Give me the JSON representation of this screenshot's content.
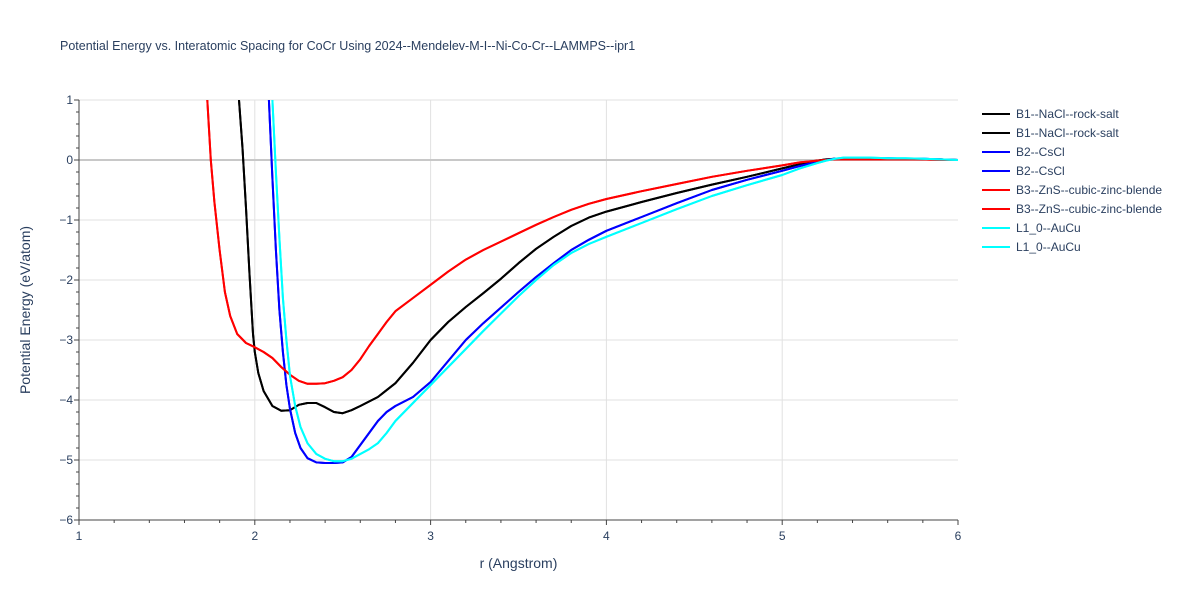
{
  "chart_data": {
    "type": "line",
    "title": "Potential Energy vs. Interatomic Spacing for CoCr Using 2024--Mendelev-M-I--Ni-Co-Cr--LAMMPS--ipr1",
    "xlabel": "r (Angstrom)",
    "ylabel": "Potential Energy (eV/atom)",
    "xlim": [
      1,
      6
    ],
    "ylim": [
      -6,
      1
    ],
    "x_ticks": [
      "1",
      "2",
      "3",
      "4",
      "5",
      "6"
    ],
    "y_ticks": [
      "−6",
      "−5",
      "−4",
      "−3",
      "−2",
      "−1",
      "0",
      "1"
    ],
    "grid": true,
    "legend_position": "right",
    "series": [
      {
        "name": "B1--NaCl--rock-salt",
        "color": "#000000",
        "x": [
          1.91,
          1.93,
          1.95,
          1.97,
          1.99,
          2.0,
          2.02,
          2.05,
          2.1,
          2.15,
          2.2,
          2.25,
          2.3,
          2.35,
          2.4,
          2.45,
          2.5,
          2.55,
          2.6,
          2.7,
          2.8,
          2.9,
          3.0,
          3.1,
          3.2,
          3.3,
          3.4,
          3.5,
          3.6,
          3.7,
          3.8,
          3.9,
          4.0,
          4.2,
          4.4,
          4.6,
          4.8,
          5.0,
          5.1,
          5.2,
          5.25,
          5.3,
          5.4,
          5.5,
          5.6,
          5.7,
          5.8,
          5.9,
          6.0
        ],
        "y": [
          1.0,
          0.2,
          -0.8,
          -1.9,
          -2.9,
          -3.2,
          -3.55,
          -3.85,
          -4.1,
          -4.18,
          -4.17,
          -4.08,
          -4.05,
          -4.05,
          -4.12,
          -4.2,
          -4.22,
          -4.17,
          -4.1,
          -3.95,
          -3.72,
          -3.38,
          -3.0,
          -2.7,
          -2.45,
          -2.22,
          -1.98,
          -1.72,
          -1.48,
          -1.28,
          -1.1,
          -0.96,
          -0.86,
          -0.7,
          -0.55,
          -0.41,
          -0.28,
          -0.14,
          -0.07,
          -0.01,
          0.01,
          0.02,
          0.02,
          0.02,
          0.02,
          0.02,
          0.01,
          0.01,
          0.0
        ]
      },
      {
        "name": "B1--NaCl--rock-salt",
        "color": "#000000",
        "x": [
          1.91,
          1.93,
          1.95,
          1.97,
          1.99,
          2.0,
          2.02,
          2.05,
          2.1,
          2.15,
          2.2,
          2.25,
          2.3,
          2.35,
          2.4,
          2.45,
          2.5,
          2.55,
          2.6,
          2.7,
          2.8,
          2.9,
          3.0,
          3.1,
          3.2,
          3.3,
          3.4,
          3.5,
          3.6,
          3.7,
          3.8,
          3.9,
          4.0,
          4.2,
          4.4,
          4.6,
          4.8,
          5.0,
          5.1,
          5.2,
          5.25,
          5.3,
          5.4,
          5.5,
          5.6,
          5.7,
          5.8,
          5.9,
          6.0
        ],
        "y": [
          1.0,
          0.2,
          -0.8,
          -1.9,
          -2.9,
          -3.2,
          -3.55,
          -3.85,
          -4.1,
          -4.18,
          -4.17,
          -4.08,
          -4.05,
          -4.05,
          -4.12,
          -4.2,
          -4.22,
          -4.17,
          -4.1,
          -3.95,
          -3.72,
          -3.38,
          -3.0,
          -2.7,
          -2.45,
          -2.22,
          -1.98,
          -1.72,
          -1.48,
          -1.28,
          -1.1,
          -0.96,
          -0.86,
          -0.7,
          -0.55,
          -0.41,
          -0.28,
          -0.14,
          -0.07,
          -0.01,
          0.01,
          0.02,
          0.02,
          0.02,
          0.02,
          0.02,
          0.01,
          0.01,
          0.0
        ]
      },
      {
        "name": "B2--CsCl",
        "color": "#0000ff",
        "x": [
          2.08,
          2.1,
          2.12,
          2.14,
          2.16,
          2.18,
          2.2,
          2.23,
          2.26,
          2.3,
          2.35,
          2.4,
          2.45,
          2.5,
          2.55,
          2.6,
          2.65,
          2.7,
          2.75,
          2.8,
          2.9,
          3.0,
          3.1,
          3.2,
          3.3,
          3.4,
          3.5,
          3.6,
          3.7,
          3.8,
          3.9,
          4.0,
          4.2,
          4.4,
          4.6,
          4.8,
          5.0,
          5.1,
          5.2,
          5.25,
          5.3,
          5.35,
          5.4,
          5.5,
          5.6,
          5.7,
          5.8,
          5.9,
          6.0
        ],
        "y": [
          1.0,
          -0.3,
          -1.5,
          -2.5,
          -3.2,
          -3.75,
          -4.15,
          -4.55,
          -4.8,
          -4.97,
          -5.04,
          -5.05,
          -5.05,
          -5.04,
          -4.95,
          -4.75,
          -4.55,
          -4.35,
          -4.2,
          -4.1,
          -3.95,
          -3.7,
          -3.35,
          -3.0,
          -2.72,
          -2.46,
          -2.2,
          -1.95,
          -1.72,
          -1.5,
          -1.33,
          -1.18,
          -0.95,
          -0.72,
          -0.5,
          -0.33,
          -0.18,
          -0.1,
          -0.03,
          0.0,
          0.02,
          0.03,
          0.03,
          0.03,
          0.03,
          0.02,
          0.02,
          0.01,
          0.0
        ]
      },
      {
        "name": "B2--CsCl",
        "color": "#0000ff",
        "x": [
          2.08,
          2.1,
          2.12,
          2.14,
          2.16,
          2.18,
          2.2,
          2.23,
          2.26,
          2.3,
          2.35,
          2.4,
          2.45,
          2.5,
          2.55,
          2.6,
          2.65,
          2.7,
          2.75,
          2.8,
          2.9,
          3.0,
          3.1,
          3.2,
          3.3,
          3.4,
          3.5,
          3.6,
          3.7,
          3.8,
          3.9,
          4.0,
          4.2,
          4.4,
          4.6,
          4.8,
          5.0,
          5.1,
          5.2,
          5.25,
          5.3,
          5.35,
          5.4,
          5.5,
          5.6,
          5.7,
          5.8,
          5.9,
          6.0
        ],
        "y": [
          1.0,
          -0.3,
          -1.5,
          -2.5,
          -3.2,
          -3.75,
          -4.15,
          -4.55,
          -4.8,
          -4.97,
          -5.04,
          -5.05,
          -5.05,
          -5.04,
          -4.95,
          -4.75,
          -4.55,
          -4.35,
          -4.2,
          -4.1,
          -3.95,
          -3.7,
          -3.35,
          -3.0,
          -2.72,
          -2.46,
          -2.2,
          -1.95,
          -1.72,
          -1.5,
          -1.33,
          -1.18,
          -0.95,
          -0.72,
          -0.5,
          -0.33,
          -0.18,
          -0.1,
          -0.03,
          0.0,
          0.02,
          0.03,
          0.03,
          0.03,
          0.03,
          0.02,
          0.02,
          0.01,
          0.0
        ]
      },
      {
        "name": "B3--ZnS--cubic-zinc-blende",
        "color": "#ff0000",
        "x": [
          1.73,
          1.75,
          1.77,
          1.8,
          1.83,
          1.86,
          1.9,
          1.95,
          2.0,
          2.05,
          2.1,
          2.15,
          2.2,
          2.25,
          2.3,
          2.35,
          2.4,
          2.45,
          2.5,
          2.55,
          2.6,
          2.65,
          2.7,
          2.75,
          2.8,
          2.9,
          3.0,
          3.1,
          3.2,
          3.3,
          3.4,
          3.5,
          3.6,
          3.7,
          3.8,
          3.9,
          4.0,
          4.2,
          4.4,
          4.6,
          4.8,
          5.0,
          5.1,
          5.2,
          5.25,
          5.3,
          5.4,
          5.5,
          5.6,
          5.7,
          5.8,
          5.9,
          6.0
        ],
        "y": [
          1.0,
          0.0,
          -0.7,
          -1.5,
          -2.2,
          -2.6,
          -2.9,
          -3.05,
          -3.12,
          -3.2,
          -3.3,
          -3.45,
          -3.58,
          -3.68,
          -3.73,
          -3.73,
          -3.72,
          -3.68,
          -3.62,
          -3.5,
          -3.32,
          -3.1,
          -2.9,
          -2.7,
          -2.52,
          -2.3,
          -2.08,
          -1.86,
          -1.66,
          -1.5,
          -1.36,
          -1.22,
          -1.08,
          -0.95,
          -0.83,
          -0.73,
          -0.65,
          -0.52,
          -0.4,
          -0.28,
          -0.18,
          -0.09,
          -0.04,
          -0.01,
          0.0,
          0.01,
          0.01,
          0.01,
          0.01,
          0.01,
          0.01,
          0.0,
          0.0
        ]
      },
      {
        "name": "B3--ZnS--cubic-zinc-blende",
        "color": "#ff0000",
        "x": [
          1.73,
          1.75,
          1.77,
          1.8,
          1.83,
          1.86,
          1.9,
          1.95,
          2.0,
          2.05,
          2.1,
          2.15,
          2.2,
          2.25,
          2.3,
          2.35,
          2.4,
          2.45,
          2.5,
          2.55,
          2.6,
          2.65,
          2.7,
          2.75,
          2.8,
          2.9,
          3.0,
          3.1,
          3.2,
          3.3,
          3.4,
          3.5,
          3.6,
          3.7,
          3.8,
          3.9,
          4.0,
          4.2,
          4.4,
          4.6,
          4.8,
          5.0,
          5.1,
          5.2,
          5.25,
          5.3,
          5.4,
          5.5,
          5.6,
          5.7,
          5.8,
          5.9,
          6.0
        ],
        "y": [
          1.0,
          0.0,
          -0.7,
          -1.5,
          -2.2,
          -2.6,
          -2.9,
          -3.05,
          -3.12,
          -3.2,
          -3.3,
          -3.45,
          -3.58,
          -3.68,
          -3.73,
          -3.73,
          -3.72,
          -3.68,
          -3.62,
          -3.5,
          -3.32,
          -3.1,
          -2.9,
          -2.7,
          -2.52,
          -2.3,
          -2.08,
          -1.86,
          -1.66,
          -1.5,
          -1.36,
          -1.22,
          -1.08,
          -0.95,
          -0.83,
          -0.73,
          -0.65,
          -0.52,
          -0.4,
          -0.28,
          -0.18,
          -0.09,
          -0.04,
          -0.01,
          0.0,
          0.01,
          0.01,
          0.01,
          0.01,
          0.01,
          0.01,
          0.0,
          0.0
        ]
      },
      {
        "name": "L1_0--AuCu",
        "color": "#00ffff",
        "x": [
          2.1,
          2.12,
          2.14,
          2.16,
          2.18,
          2.2,
          2.23,
          2.26,
          2.3,
          2.35,
          2.4,
          2.45,
          2.5,
          2.55,
          2.6,
          2.65,
          2.7,
          2.75,
          2.8,
          2.9,
          3.0,
          3.1,
          3.2,
          3.3,
          3.4,
          3.5,
          3.6,
          3.7,
          3.8,
          3.9,
          4.0,
          4.2,
          4.4,
          4.6,
          4.8,
          5.0,
          5.1,
          5.2,
          5.25,
          5.3,
          5.35,
          5.4,
          5.5,
          5.6,
          5.7,
          5.8,
          5.9,
          6.0
        ],
        "y": [
          1.0,
          -0.2,
          -1.3,
          -2.3,
          -3.0,
          -3.6,
          -4.1,
          -4.45,
          -4.72,
          -4.9,
          -4.98,
          -5.02,
          -5.02,
          -4.98,
          -4.9,
          -4.82,
          -4.72,
          -4.55,
          -4.35,
          -4.05,
          -3.75,
          -3.45,
          -3.15,
          -2.85,
          -2.56,
          -2.27,
          -2.0,
          -1.75,
          -1.55,
          -1.4,
          -1.28,
          -1.05,
          -0.82,
          -0.6,
          -0.42,
          -0.25,
          -0.14,
          -0.05,
          -0.01,
          0.02,
          0.04,
          0.04,
          0.04,
          0.03,
          0.03,
          0.02,
          0.01,
          0.0
        ]
      },
      {
        "name": "L1_0--AuCu",
        "color": "#00ffff",
        "x": [
          2.1,
          2.12,
          2.14,
          2.16,
          2.18,
          2.2,
          2.23,
          2.26,
          2.3,
          2.35,
          2.4,
          2.45,
          2.5,
          2.55,
          2.6,
          2.65,
          2.7,
          2.75,
          2.8,
          2.9,
          3.0,
          3.1,
          3.2,
          3.3,
          3.4,
          3.5,
          3.6,
          3.7,
          3.8,
          3.9,
          4.0,
          4.2,
          4.4,
          4.6,
          4.8,
          5.0,
          5.1,
          5.2,
          5.25,
          5.3,
          5.35,
          5.4,
          5.5,
          5.6,
          5.7,
          5.8,
          5.9,
          6.0
        ],
        "y": [
          1.0,
          -0.2,
          -1.3,
          -2.3,
          -3.0,
          -3.6,
          -4.1,
          -4.45,
          -4.72,
          -4.9,
          -4.98,
          -5.02,
          -5.02,
          -4.98,
          -4.9,
          -4.82,
          -4.72,
          -4.55,
          -4.35,
          -4.05,
          -3.75,
          -3.45,
          -3.15,
          -2.85,
          -2.56,
          -2.27,
          -2.0,
          -1.75,
          -1.55,
          -1.4,
          -1.28,
          -1.05,
          -0.82,
          -0.6,
          -0.42,
          -0.25,
          -0.14,
          -0.05,
          -0.01,
          0.02,
          0.04,
          0.04,
          0.04,
          0.03,
          0.03,
          0.02,
          0.01,
          0.0
        ]
      }
    ]
  }
}
